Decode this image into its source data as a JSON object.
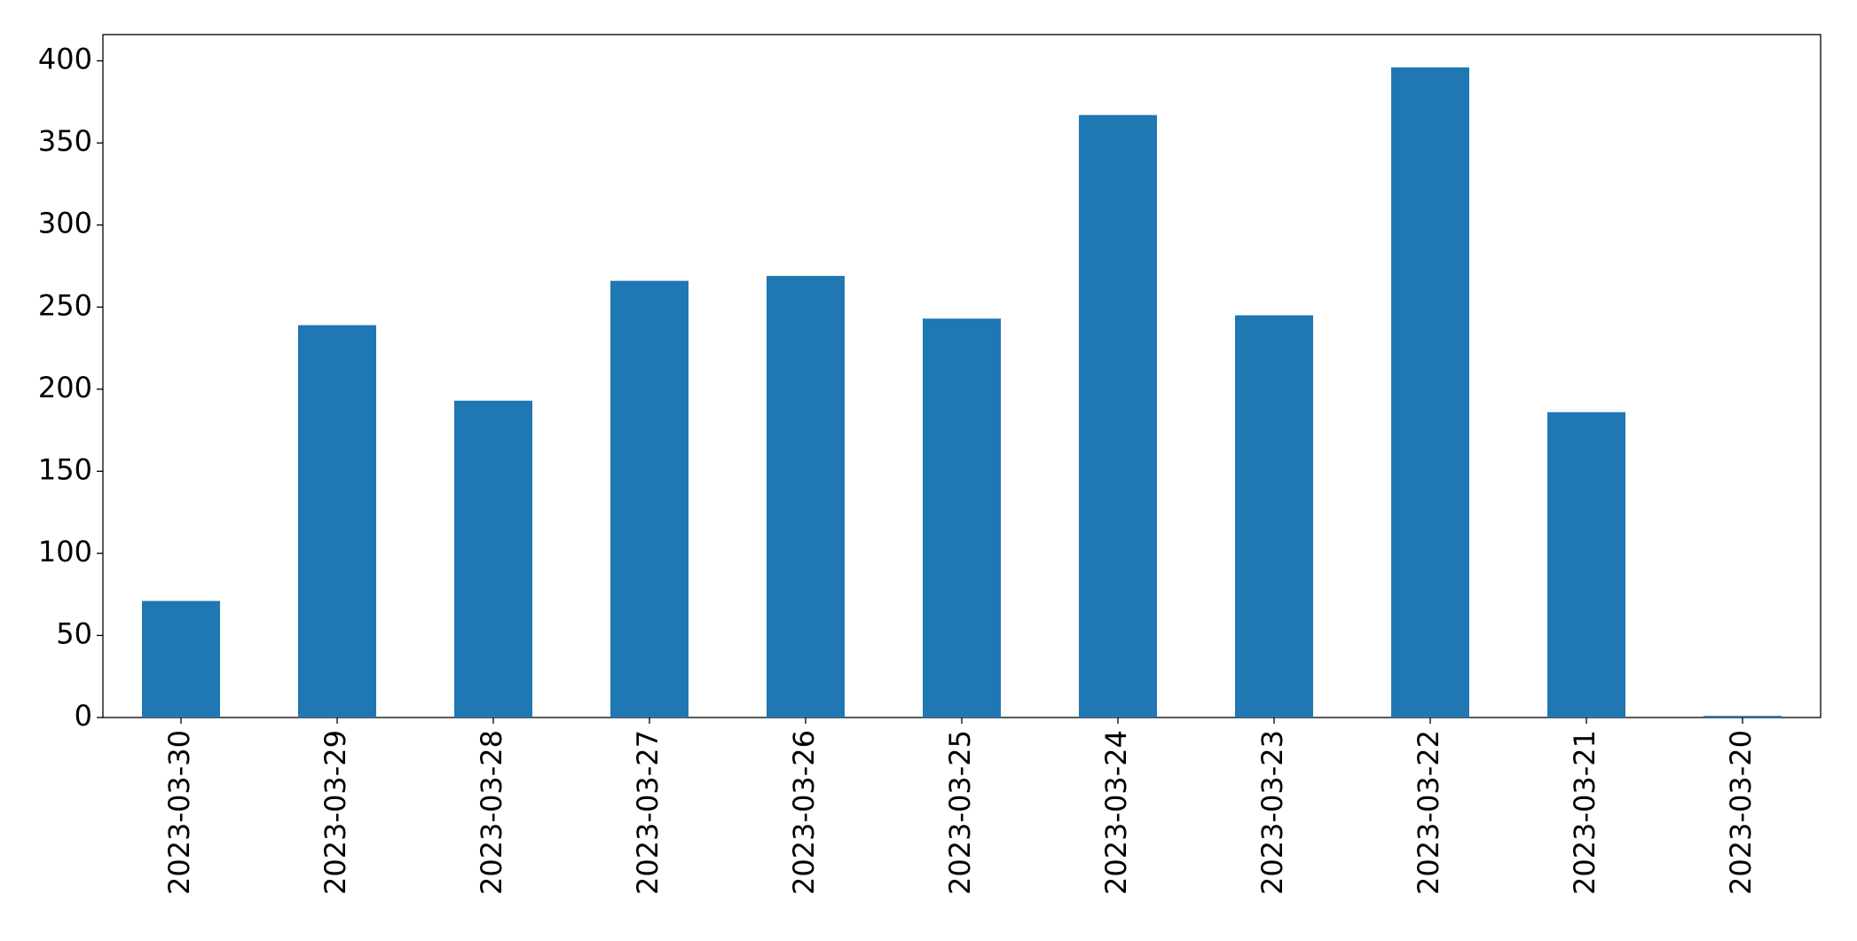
{
  "chart_data": {
    "type": "bar",
    "categories": [
      "2023-03-30",
      "2023-03-29",
      "2023-03-28",
      "2023-03-27",
      "2023-03-26",
      "2023-03-25",
      "2023-03-24",
      "2023-03-23",
      "2023-03-22",
      "2023-03-21",
      "2023-03-20"
    ],
    "values": [
      71,
      239,
      193,
      266,
      269,
      243,
      367,
      245,
      396,
      186,
      1
    ],
    "color": "#1f77b4",
    "ylim": [
      0,
      416
    ],
    "yticks": [
      0,
      50,
      100,
      150,
      200,
      250,
      300,
      350,
      400
    ],
    "grid": false
  }
}
